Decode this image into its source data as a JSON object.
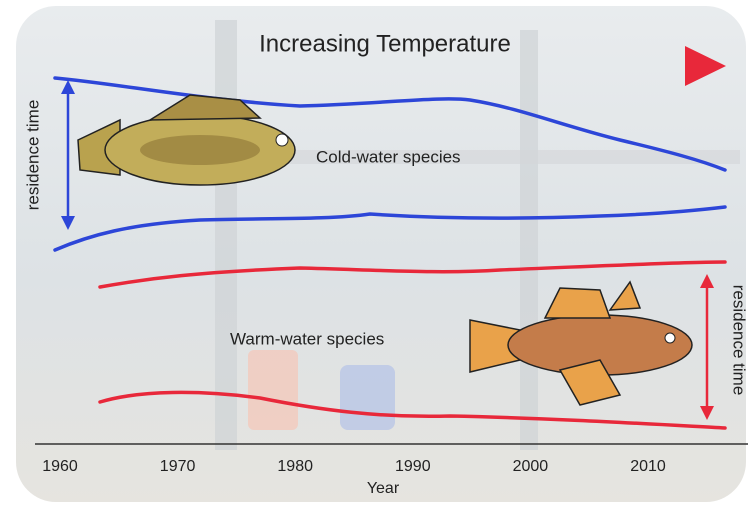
{
  "title": "Increasing Temperature",
  "labels": {
    "cold": "Cold-water species",
    "warm": "Warm-water species",
    "residence_left": "residence time",
    "residence_right": "residence time"
  },
  "x_axis": {
    "label": "Year",
    "ticks": [
      1960,
      1970,
      1980,
      1990,
      2000,
      2010
    ]
  }
}
